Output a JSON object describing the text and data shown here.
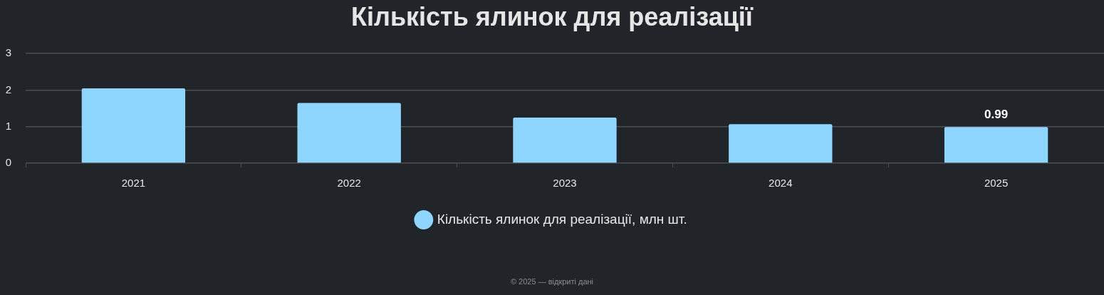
{
  "chart_data": {
    "type": "bar",
    "title": "Кількість ялинок для реалізації",
    "categories": [
      "2021",
      "2022",
      "2023",
      "2024",
      "2025"
    ],
    "series": [
      {
        "name": "Кількість ялинок для реалізації, млн шт.",
        "color": "#8fd6ff",
        "values": [
          2.05,
          1.65,
          1.25,
          1.07,
          0.99
        ],
        "value_labels": [
          null,
          null,
          null,
          null,
          "0.99"
        ]
      }
    ],
    "ylim": [
      0,
      3
    ],
    "yticks": [
      0,
      1,
      2,
      3
    ],
    "grid": "y",
    "legend": "bottom",
    "annotations": [
      "© 2025 — відкриті дані"
    ]
  }
}
